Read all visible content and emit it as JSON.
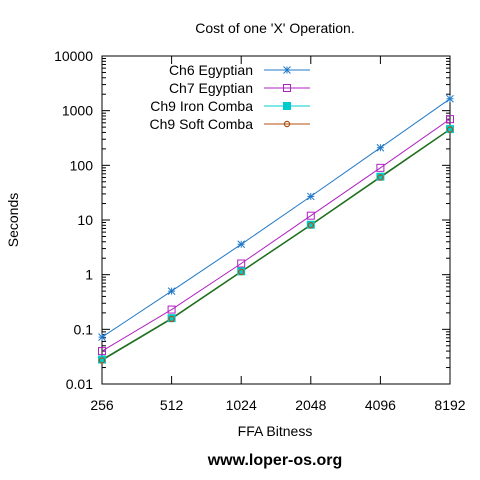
{
  "chart_data": {
    "type": "line",
    "title": "Cost of one 'X' Operation.",
    "xlabel": "FFA Bitness",
    "ylabel": "Seconds",
    "x_scale": "log2",
    "y_scale": "log10",
    "x": [
      256,
      512,
      1024,
      2048,
      4096,
      8192
    ],
    "x_tick_labels": [
      "256",
      "512",
      "1024",
      "2048",
      "4096",
      "8192"
    ],
    "y_ticks": [
      0.01,
      0.1,
      1,
      10,
      100,
      1000,
      10000
    ],
    "y_tick_labels": [
      "0.01",
      "0.1",
      "1",
      "10",
      "100",
      "1000",
      "10000"
    ],
    "xlim": [
      256,
      8192
    ],
    "ylim": [
      0.01,
      10000
    ],
    "grid": false,
    "legend_position": "top-left",
    "series": [
      {
        "name": "Ch6 Egyptian",
        "values": [
          0.072,
          0.5,
          3.6,
          27,
          210,
          1650
        ],
        "color": "#1f78c8",
        "marker": "star"
      },
      {
        "name": "Ch7 Egyptian",
        "values": [
          0.04,
          0.23,
          1.6,
          12,
          90,
          700
        ],
        "color": "#b020c0",
        "marker": "square-open"
      },
      {
        "name": "Ch9 Iron Comba",
        "values": [
          0.028,
          0.16,
          1.15,
          8.2,
          62,
          460
        ],
        "color": "#00cccc",
        "marker": "square-filled"
      },
      {
        "name": "Ch9 Soft Comba",
        "values": [
          0.027,
          0.155,
          1.12,
          8.0,
          60,
          450
        ],
        "color": "#b05010",
        "marker": "circle"
      }
    ],
    "combined_line_color": "#207020"
  },
  "footer": {
    "text": "www.loper-os.org"
  }
}
